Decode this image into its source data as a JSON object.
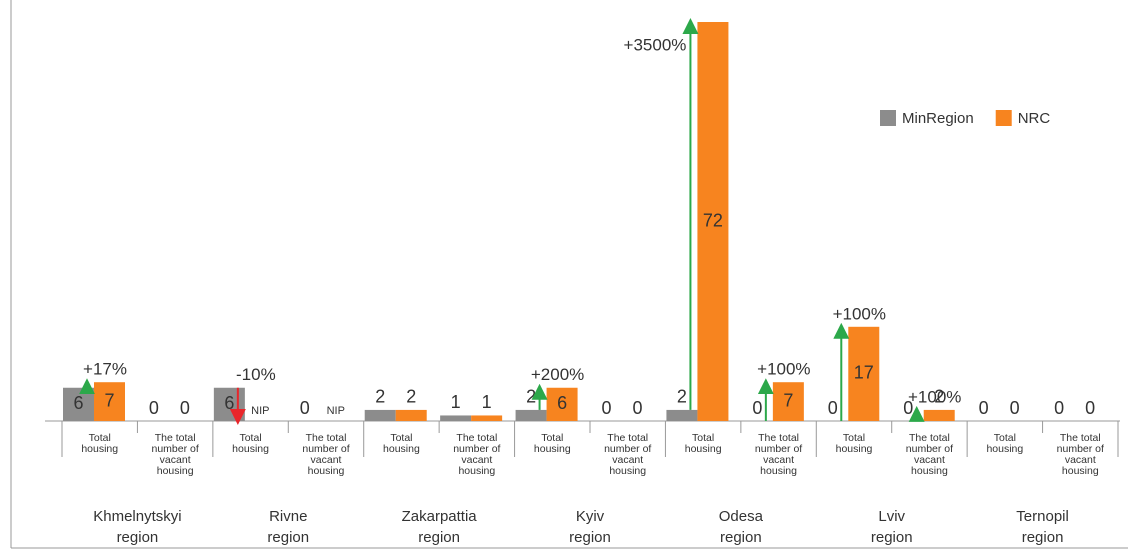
{
  "chart_data": {
    "type": "bar",
    "groups": [
      "Khmelnytskyi region",
      "Rivne region",
      "Zakarpattia region",
      "Kyiv region",
      "Odesa region",
      "Lviv region",
      "Ternopil region"
    ],
    "subcategories": [
      "Total housing",
      "The total number of vacant housing"
    ],
    "series": [
      {
        "name": "MinRegion",
        "color": "#8c8c8c",
        "values": [
          6,
          0,
          6,
          0,
          2,
          1,
          2,
          0,
          2,
          0,
          0,
          0,
          0,
          0
        ]
      },
      {
        "name": "NRC",
        "color": "#f7841f",
        "values": [
          7,
          0,
          null,
          null,
          2,
          1,
          6,
          0,
          72,
          7,
          17,
          2,
          0,
          0
        ],
        "value_labels": [
          "7",
          "0",
          "NIP",
          "NIP",
          "2",
          "1",
          "6",
          "0",
          "72",
          "7",
          "17",
          "2",
          "0",
          "0"
        ]
      }
    ],
    "change_labels": [
      "+17%",
      null,
      "-10%",
      null,
      null,
      null,
      "+200%",
      null,
      "+3500%",
      "+100%",
      "+100%",
      "+100%",
      null,
      null
    ],
    "increase_color": "#2ca84a",
    "decrease_color": "#e8262b",
    "legend": "top-right"
  }
}
